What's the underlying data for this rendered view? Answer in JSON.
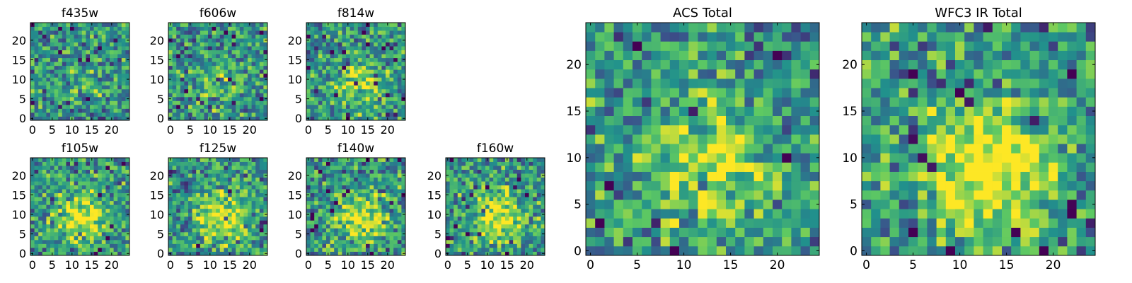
{
  "chart_data": [
    {
      "type": "heatmap",
      "title": "f435w",
      "grid_size": 25,
      "seed": 11,
      "blob_strength": 0.08,
      "xticks": [
        0,
        5,
        10,
        15,
        20
      ],
      "yticks": [
        0,
        5,
        10,
        15,
        20
      ],
      "xlim": [
        0,
        25
      ],
      "ylim": [
        0,
        25
      ]
    },
    {
      "type": "heatmap",
      "title": "f606w",
      "grid_size": 25,
      "seed": 23,
      "blob_strength": 0.18,
      "xticks": [
        0,
        5,
        10,
        15,
        20
      ],
      "yticks": [
        0,
        5,
        10,
        15,
        20
      ],
      "xlim": [
        0,
        25
      ],
      "ylim": [
        0,
        25
      ]
    },
    {
      "type": "heatmap",
      "title": "f814w",
      "grid_size": 25,
      "seed": 37,
      "blob_strength": 0.3,
      "xticks": [
        0,
        5,
        10,
        15,
        20
      ],
      "yticks": [
        0,
        5,
        10,
        15,
        20
      ],
      "xlim": [
        0,
        25
      ],
      "ylim": [
        0,
        25
      ]
    },
    {
      "type": "heatmap",
      "title": "f105w",
      "grid_size": 25,
      "seed": 41,
      "blob_strength": 0.45,
      "xticks": [
        0,
        5,
        10,
        15,
        20
      ],
      "yticks": [
        0,
        5,
        10,
        15,
        20
      ],
      "xlim": [
        0,
        25
      ],
      "ylim": [
        0,
        25
      ]
    },
    {
      "type": "heatmap",
      "title": "f125w",
      "grid_size": 25,
      "seed": 53,
      "blob_strength": 0.45,
      "xticks": [
        0,
        5,
        10,
        15,
        20
      ],
      "yticks": [
        0,
        5,
        10,
        15,
        20
      ],
      "xlim": [
        0,
        25
      ],
      "ylim": [
        0,
        25
      ]
    },
    {
      "type": "heatmap",
      "title": "f140w",
      "grid_size": 25,
      "seed": 67,
      "blob_strength": 0.45,
      "xticks": [
        0,
        5,
        10,
        15,
        20
      ],
      "yticks": [
        0,
        5,
        10,
        15,
        20
      ],
      "xlim": [
        0,
        25
      ],
      "ylim": [
        0,
        25
      ]
    },
    {
      "type": "heatmap",
      "title": "f160w",
      "grid_size": 25,
      "seed": 79,
      "blob_strength": 0.45,
      "xticks": [
        0,
        5,
        10,
        15,
        20
      ],
      "yticks": [
        0,
        5,
        10,
        15,
        20
      ],
      "xlim": [
        0,
        25
      ],
      "ylim": [
        0,
        25
      ]
    },
    {
      "type": "heatmap",
      "title": "ACS Total",
      "grid_size": 25,
      "seed": 97,
      "blob_strength": 0.35,
      "xticks": [
        0,
        5,
        10,
        15,
        20
      ],
      "yticks": [
        0,
        5,
        10,
        15,
        20
      ],
      "xlim": [
        0,
        25
      ],
      "ylim": [
        0,
        25
      ]
    },
    {
      "type": "heatmap",
      "title": "WFC3 IR Total",
      "grid_size": 25,
      "seed": 131,
      "blob_strength": 0.6,
      "xticks": [
        0,
        5,
        10,
        15,
        20
      ],
      "yticks": [
        0,
        5,
        10,
        15,
        20
      ],
      "xlim": [
        0,
        25
      ],
      "ylim": [
        0,
        25
      ]
    }
  ],
  "colormap": [
    "#440154",
    "#3b528b",
    "#21918c",
    "#5ec962",
    "#fde725"
  ]
}
